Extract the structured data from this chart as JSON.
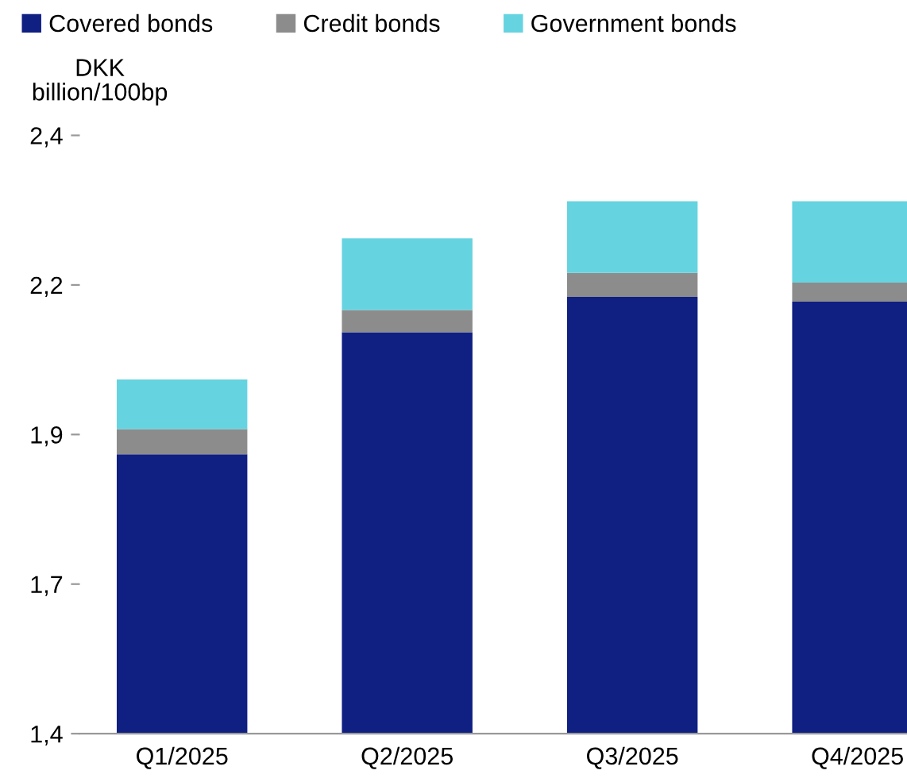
{
  "chart_data": {
    "type": "bar",
    "stacked": true,
    "ylabel": "DKK\nbillion/100bp",
    "categories": [
      "Q1/2025",
      "Q2/2025",
      "Q3/2025",
      "Q4/2025"
    ],
    "series": [
      {
        "name": "Covered bonds",
        "color": "#0f1f82",
        "values": [
          1.867,
          2.071,
          2.13,
          2.122
        ]
      },
      {
        "name": "Credit bonds",
        "color": "#8c8c8c",
        "base": [
          1.867,
          2.071,
          2.13,
          2.122
        ],
        "values": [
          0.042,
          0.037,
          0.04,
          0.032
        ]
      },
      {
        "name": "Government bonds",
        "color": "#66d3e0",
        "base": [
          1.909,
          2.108,
          2.17,
          2.154
        ],
        "values": [
          0.083,
          0.12,
          0.12,
          0.136
        ]
      }
    ],
    "ylim": [
      1.4,
      2.4
    ],
    "yticks": [
      {
        "value": 1.4,
        "label": "1,4"
      },
      {
        "value": 1.65,
        "label": "1,7"
      },
      {
        "value": 1.9,
        "label": "1,9"
      },
      {
        "value": 2.15,
        "label": "2,2"
      },
      {
        "value": 2.4,
        "label": "2,4"
      }
    ],
    "grid": false,
    "legend": "top"
  }
}
